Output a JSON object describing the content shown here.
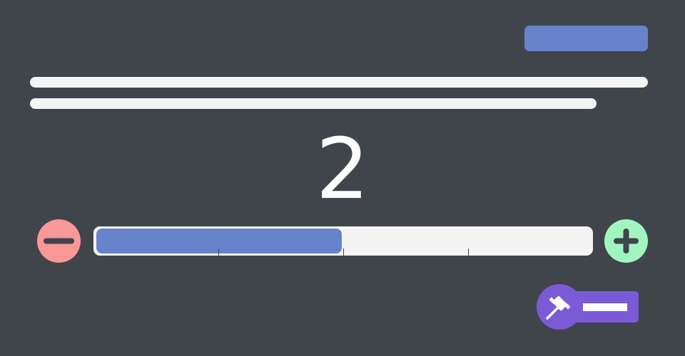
{
  "counter": {
    "value": "2"
  },
  "slider": {
    "value_fraction": 0.5,
    "tick_fractions": [
      0.25,
      0.5,
      0.75
    ]
  },
  "colors": {
    "background": "#40444b",
    "accent": "#6783c9",
    "decrement": "#fa9898",
    "increment": "#a1f6c0",
    "gavel_button": "#7b5ad8",
    "text_placeholder": "#f4f4f4"
  },
  "icons": {
    "decrement": "minus-icon",
    "increment": "plus-icon",
    "action": "gavel-icon"
  }
}
